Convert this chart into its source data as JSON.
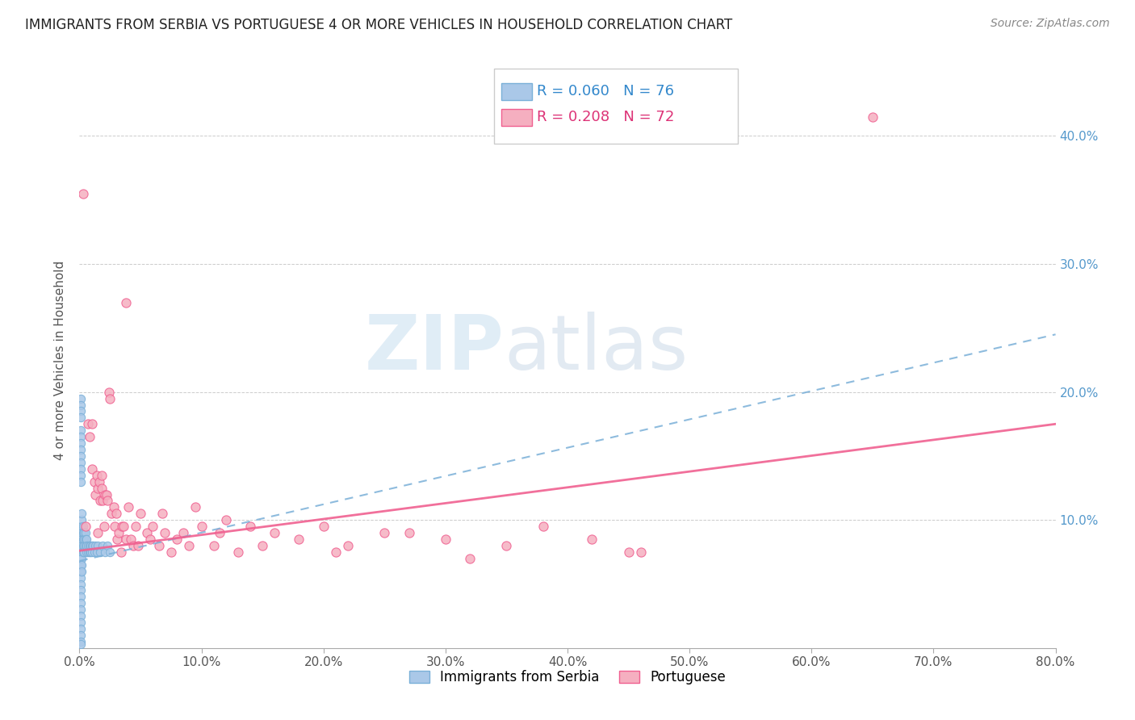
{
  "title": "IMMIGRANTS FROM SERBIA VS PORTUGUESE 4 OR MORE VEHICLES IN HOUSEHOLD CORRELATION CHART",
  "source": "Source: ZipAtlas.com",
  "ylabel": "4 or more Vehicles in Household",
  "xlabel": "",
  "watermark_zip": "ZIP",
  "watermark_atlas": "atlas",
  "serbia_R": 0.06,
  "serbia_N": 76,
  "portuguese_R": 0.208,
  "portuguese_N": 72,
  "serbia_color": "#aac8e8",
  "portuguese_color": "#f5afc0",
  "serbia_line_color": "#7ab0d8",
  "portuguese_line_color": "#f06090",
  "xlim": [
    0,
    0.8
  ],
  "ylim": [
    0,
    0.45
  ],
  "xtick_vals": [
    0.0,
    0.1,
    0.2,
    0.3,
    0.4,
    0.5,
    0.6,
    0.7,
    0.8
  ],
  "xtick_labels": [
    "0.0%",
    "10.0%",
    "20.0%",
    "30.0%",
    "40.0%",
    "50.0%",
    "60.0%",
    "70.0%",
    "80.0%"
  ],
  "ytick_vals": [
    0.0,
    0.1,
    0.2,
    0.3,
    0.4
  ],
  "ytick_labels": [
    "",
    "10.0%",
    "20.0%",
    "30.0%",
    "40.0%"
  ],
  "serbia_trend_x": [
    0.0,
    0.8
  ],
  "serbia_trend_y": [
    0.068,
    0.245
  ],
  "portuguese_trend_x": [
    0.0,
    0.8
  ],
  "portuguese_trend_y": [
    0.076,
    0.175
  ],
  "serbia_x": [
    0.001,
    0.001,
    0.001,
    0.001,
    0.001,
    0.001,
    0.001,
    0.001,
    0.001,
    0.001,
    0.001,
    0.001,
    0.001,
    0.001,
    0.001,
    0.001,
    0.001,
    0.001,
    0.001,
    0.001,
    0.002,
    0.002,
    0.002,
    0.002,
    0.002,
    0.002,
    0.002,
    0.002,
    0.002,
    0.002,
    0.003,
    0.003,
    0.003,
    0.003,
    0.003,
    0.004,
    0.004,
    0.004,
    0.004,
    0.005,
    0.005,
    0.005,
    0.006,
    0.006,
    0.006,
    0.007,
    0.007,
    0.008,
    0.008,
    0.009,
    0.009,
    0.01,
    0.01,
    0.011,
    0.012,
    0.013,
    0.014,
    0.015,
    0.017,
    0.019,
    0.021,
    0.023,
    0.025,
    0.001,
    0.001,
    0.001,
    0.001,
    0.001,
    0.001,
    0.001,
    0.001,
    0.001,
    0.001,
    0.001,
    0.001,
    0.001
  ],
  "serbia_y": [
    0.06,
    0.055,
    0.05,
    0.045,
    0.04,
    0.035,
    0.03,
    0.025,
    0.02,
    0.015,
    0.01,
    0.005,
    0.003,
    0.08,
    0.075,
    0.07,
    0.065,
    0.09,
    0.085,
    0.095,
    0.095,
    0.09,
    0.085,
    0.08,
    0.075,
    0.07,
    0.065,
    0.06,
    0.1,
    0.105,
    0.095,
    0.09,
    0.085,
    0.08,
    0.075,
    0.09,
    0.085,
    0.08,
    0.075,
    0.09,
    0.085,
    0.08,
    0.085,
    0.08,
    0.075,
    0.08,
    0.075,
    0.08,
    0.075,
    0.08,
    0.075,
    0.08,
    0.075,
    0.08,
    0.075,
    0.08,
    0.075,
    0.08,
    0.075,
    0.08,
    0.075,
    0.08,
    0.075,
    0.195,
    0.19,
    0.185,
    0.18,
    0.17,
    0.165,
    0.16,
    0.155,
    0.15,
    0.145,
    0.14,
    0.135,
    0.13
  ],
  "portuguese_x": [
    0.003,
    0.005,
    0.007,
    0.008,
    0.01,
    0.01,
    0.012,
    0.013,
    0.014,
    0.015,
    0.015,
    0.016,
    0.017,
    0.018,
    0.018,
    0.019,
    0.02,
    0.021,
    0.022,
    0.023,
    0.024,
    0.025,
    0.026,
    0.028,
    0.029,
    0.03,
    0.031,
    0.032,
    0.034,
    0.035,
    0.036,
    0.038,
    0.04,
    0.042,
    0.044,
    0.046,
    0.048,
    0.05,
    0.055,
    0.058,
    0.06,
    0.065,
    0.068,
    0.07,
    0.075,
    0.08,
    0.085,
    0.09,
    0.095,
    0.1,
    0.11,
    0.115,
    0.12,
    0.13,
    0.14,
    0.15,
    0.16,
    0.18,
    0.2,
    0.21,
    0.22,
    0.25,
    0.27,
    0.3,
    0.32,
    0.35,
    0.38,
    0.42,
    0.45,
    0.46,
    0.65,
    0.038
  ],
  "portuguese_y": [
    0.355,
    0.095,
    0.175,
    0.165,
    0.175,
    0.14,
    0.13,
    0.12,
    0.135,
    0.125,
    0.09,
    0.13,
    0.115,
    0.135,
    0.125,
    0.115,
    0.095,
    0.12,
    0.12,
    0.115,
    0.2,
    0.195,
    0.105,
    0.11,
    0.095,
    0.105,
    0.085,
    0.09,
    0.075,
    0.095,
    0.095,
    0.085,
    0.11,
    0.085,
    0.08,
    0.095,
    0.08,
    0.105,
    0.09,
    0.085,
    0.095,
    0.08,
    0.105,
    0.09,
    0.075,
    0.085,
    0.09,
    0.08,
    0.11,
    0.095,
    0.08,
    0.09,
    0.1,
    0.075,
    0.095,
    0.08,
    0.09,
    0.085,
    0.095,
    0.075,
    0.08,
    0.09,
    0.09,
    0.085,
    0.07,
    0.08,
    0.095,
    0.085,
    0.075,
    0.075,
    0.415,
    0.27
  ]
}
